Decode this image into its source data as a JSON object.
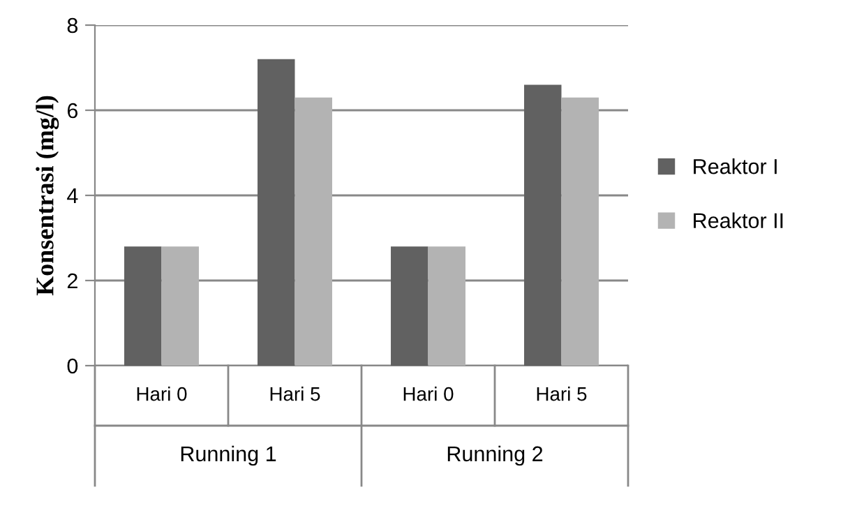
{
  "chart_data": {
    "type": "bar",
    "ylabel": "Konsentrasi (mg/l)",
    "categories": [
      "Hari 0",
      "Hari 5",
      "Hari 0",
      "Hari 5"
    ],
    "annotations": [
      "Running 1",
      "Running 2"
    ],
    "series": [
      {
        "name": "Reaktor I",
        "color": "#616161",
        "values": [
          2.8,
          7.2,
          2.8,
          6.6
        ]
      },
      {
        "name": "Reaktor II",
        "color": "#b3b3b3",
        "values": [
          2.8,
          6.3,
          2.8,
          6.3
        ]
      }
    ],
    "ylim": [
      0,
      8
    ],
    "yticks": [
      0,
      2,
      4,
      6,
      8
    ],
    "grid": "y",
    "legend": "right"
  }
}
